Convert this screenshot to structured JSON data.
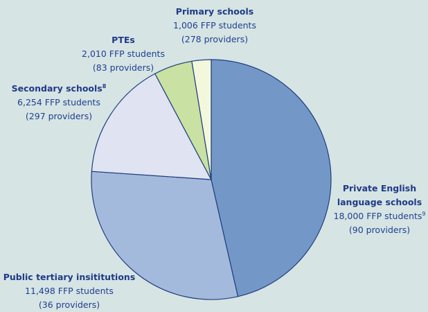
{
  "chart_data": {
    "type": "pie",
    "categories": [
      "Private English language schools",
      "Public tertiary insititutions",
      "Secondary schools",
      "PTEs",
      "Primary schools"
    ],
    "category_footnotes": [
      null,
      null,
      "8",
      null,
      null
    ],
    "values": [
      18000,
      11498,
      6254,
      2010,
      1006
    ],
    "value_labels": [
      "18,000 FFP students",
      "11,498 FFP students",
      "6,254 FFP students",
      "2,010 FFP students",
      "1,006 FFP students"
    ],
    "value_footnotes": [
      "9",
      null,
      null,
      null,
      null
    ],
    "provider_labels": [
      "(90 providers)",
      "(36 providers)",
      "(297 providers)",
      "(83 providers)",
      "(278 providers)"
    ],
    "colors": [
      "#7398c8",
      "#a4badd",
      "#dfe3f2",
      "#c9e1a2",
      "#f3f8dc"
    ],
    "start_angle": 0,
    "direction": "clockwise"
  }
}
